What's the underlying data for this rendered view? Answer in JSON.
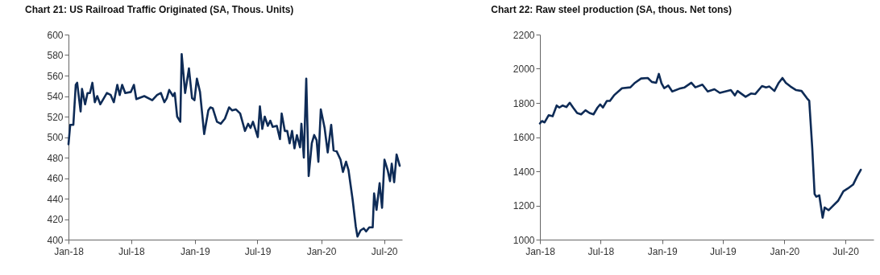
{
  "chart_data": [
    {
      "type": "line",
      "title": "Chart 21: US Railroad Traffic Originated (SA, Thous. Units)",
      "x": [
        "2018-01-01",
        "2018-01-06",
        "2018-01-15",
        "2018-01-22",
        "2018-01-26",
        "2018-02-05",
        "2018-02-09",
        "2018-02-18",
        "2018-02-25",
        "2018-03-04",
        "2018-03-11",
        "2018-03-18",
        "2018-03-25",
        "2018-04-03",
        "2018-04-22",
        "2018-05-03",
        "2018-05-12",
        "2018-05-22",
        "2018-05-29",
        "2018-06-05",
        "2018-06-14",
        "2018-06-30",
        "2018-07-09",
        "2018-07-16",
        "2018-08-08",
        "2018-08-31",
        "2018-09-14",
        "2018-09-25",
        "2018-10-05",
        "2018-10-12",
        "2018-10-19",
        "2018-10-30",
        "2018-11-04",
        "2018-11-11",
        "2018-11-20",
        "2018-11-24",
        "2018-12-04",
        "2018-12-15",
        "2018-12-24",
        "2018-12-31",
        "2019-01-07",
        "2019-01-16",
        "2019-01-28",
        "2019-02-09",
        "2019-02-15",
        "2019-02-22",
        "2019-03-06",
        "2019-03-17",
        "2019-03-29",
        "2019-04-10",
        "2019-04-19",
        "2019-04-30",
        "2019-05-12",
        "2019-05-26",
        "2019-06-04",
        "2019-06-11",
        "2019-06-18",
        "2019-07-02",
        "2019-07-08",
        "2019-07-15",
        "2019-07-22",
        "2019-07-31",
        "2019-08-07",
        "2019-08-14",
        "2019-08-26",
        "2019-09-04",
        "2019-09-09",
        "2019-09-18",
        "2019-09-25",
        "2019-10-02",
        "2019-10-09",
        "2019-10-16",
        "2019-10-23",
        "2019-11-01",
        "2019-11-05",
        "2019-11-12",
        "2019-11-19",
        "2019-11-26",
        "2019-12-05",
        "2019-12-12",
        "2019-12-19",
        "2019-12-24",
        "2019-12-31",
        "2020-01-11",
        "2020-01-20",
        "2020-01-30",
        "2020-02-06",
        "2020-02-15",
        "2020-02-26",
        "2020-03-04",
        "2020-03-13",
        "2020-03-20",
        "2020-04-01",
        "2020-04-10",
        "2020-04-15",
        "2020-04-24",
        "2020-05-03",
        "2020-05-10",
        "2020-05-19",
        "2020-05-29",
        "2020-06-02",
        "2020-06-09",
        "2020-06-18",
        "2020-06-25",
        "2020-07-02",
        "2020-07-11",
        "2020-07-18",
        "2020-07-23",
        "2020-07-30",
        "2020-08-06",
        "2020-08-15"
      ],
      "series": [
        {
          "color": "#0e2b56",
          "values": [
            493,
            512,
            512,
            551,
            553,
            525,
            547,
            532,
            543,
            543,
            553,
            534,
            540,
            532,
            543,
            541,
            534,
            551,
            541,
            551,
            543,
            544,
            551,
            537,
            540,
            536,
            541,
            543,
            534,
            538,
            546,
            540,
            543,
            520,
            515,
            581,
            543,
            567,
            538,
            536,
            557,
            544,
            503,
            526,
            529,
            528,
            515,
            513,
            518,
            529,
            526,
            527,
            523,
            506,
            513,
            509,
            515,
            500,
            530,
            508,
            520,
            511,
            516,
            510,
            511,
            498,
            523,
            506,
            506,
            494,
            506,
            489,
            502,
            490,
            513,
            480,
            557,
            462,
            494,
            502,
            497,
            476,
            527,
            509,
            485,
            512,
            487,
            486,
            478,
            466,
            476,
            468,
            439,
            413,
            403,
            409,
            411,
            408,
            412,
            412,
            445,
            429,
            455,
            431,
            478,
            468,
            457,
            474,
            456,
            483,
            472
          ]
        }
      ],
      "xlim": [
        "2018-01-01",
        "2020-08-22"
      ],
      "xticks": [
        {
          "value": "2018-01-01",
          "label": "Jan-18"
        },
        {
          "value": "2018-07-01",
          "label": "Jul-18"
        },
        {
          "value": "2019-01-01",
          "label": "Jan-19"
        },
        {
          "value": "2019-07-01",
          "label": "Jul-19"
        },
        {
          "value": "2020-01-01",
          "label": "Jan-20"
        },
        {
          "value": "2020-07-01",
          "label": "Jul-20"
        }
      ],
      "ylim": [
        400,
        600
      ],
      "yticks": [
        400,
        420,
        440,
        460,
        480,
        500,
        520,
        540,
        560,
        580,
        600
      ],
      "grid": false
    },
    {
      "type": "line",
      "title": "Chart 22: Raw steel production (SA, thous. Net tons)",
      "x": [
        "2018-01-01",
        "2018-01-07",
        "2018-01-15",
        "2018-01-27",
        "2018-02-08",
        "2018-02-20",
        "2018-02-28",
        "2018-03-10",
        "2018-03-21",
        "2018-03-31",
        "2018-04-10",
        "2018-04-22",
        "2018-05-04",
        "2018-05-17",
        "2018-05-29",
        "2018-06-10",
        "2018-06-22",
        "2018-06-30",
        "2018-07-08",
        "2018-07-20",
        "2018-07-29",
        "2018-08-10",
        "2018-09-03",
        "2018-09-28",
        "2018-10-10",
        "2018-10-30",
        "2018-11-19",
        "2018-12-01",
        "2018-12-14",
        "2018-12-22",
        "2018-12-30",
        "2019-01-07",
        "2019-01-19",
        "2019-01-31",
        "2019-02-21",
        "2019-03-09",
        "2019-03-29",
        "2019-04-10",
        "2019-05-01",
        "2019-05-17",
        "2019-06-06",
        "2019-06-22",
        "2019-07-25",
        "2019-08-06",
        "2019-08-14",
        "2019-09-07",
        "2019-09-23",
        "2019-10-06",
        "2019-10-26",
        "2019-11-07",
        "2019-11-17",
        "2019-12-02",
        "2019-12-14",
        "2019-12-26",
        "2020-01-05",
        "2020-01-19",
        "2020-02-05",
        "2020-02-21",
        "2020-03-08",
        "2020-03-15",
        "2020-03-24",
        "2020-03-31",
        "2020-04-05",
        "2020-04-14",
        "2020-04-24",
        "2020-04-30",
        "2020-05-12",
        "2020-05-24",
        "2020-06-09",
        "2020-06-25",
        "2020-07-08",
        "2020-07-24",
        "2020-08-05",
        "2020-08-16"
      ],
      "series": [
        {
          "color": "#0e2b56",
          "values": [
            1680,
            1694,
            1686,
            1728,
            1722,
            1785,
            1773,
            1785,
            1776,
            1801,
            1773,
            1741,
            1733,
            1757,
            1741,
            1733,
            1773,
            1791,
            1773,
            1812,
            1812,
            1844,
            1886,
            1891,
            1915,
            1943,
            1946,
            1923,
            1918,
            1970,
            1915,
            1886,
            1902,
            1867,
            1883,
            1891,
            1918,
            1891,
            1907,
            1867,
            1880,
            1859,
            1875,
            1844,
            1870,
            1836,
            1855,
            1852,
            1899,
            1891,
            1896,
            1870,
            1915,
            1946,
            1918,
            1896,
            1875,
            1870,
            1828,
            1812,
            1536,
            1267,
            1251,
            1259,
            1128,
            1188,
            1172,
            1196,
            1227,
            1283,
            1299,
            1322,
            1370,
            1409
          ]
        }
      ],
      "xlim": [
        "2018-01-01",
        "2020-09-23"
      ],
      "xticks": [
        {
          "value": "2018-01-01",
          "label": "Jan-18"
        },
        {
          "value": "2018-07-01",
          "label": "Jul-18"
        },
        {
          "value": "2019-01-01",
          "label": "Jan-19"
        },
        {
          "value": "2019-07-01",
          "label": "Jul-19"
        },
        {
          "value": "2020-01-01",
          "label": "Jan-20"
        },
        {
          "value": "2020-07-01",
          "label": "Jul-20"
        }
      ],
      "ylim": [
        1000,
        2200
      ],
      "yticks": [
        1000,
        1200,
        1400,
        1600,
        1800,
        2000,
        2200
      ],
      "grid": false
    }
  ]
}
